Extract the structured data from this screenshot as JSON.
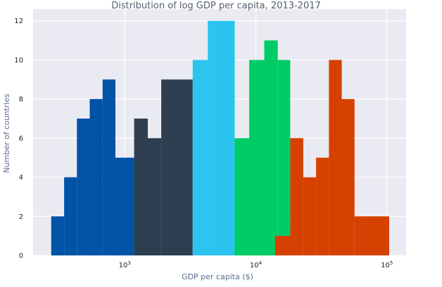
{
  "chart_data": {
    "type": "bar",
    "title": "Distribution of log GDP per capita, 2013-2017",
    "xlabel": "GDP per capita ($)",
    "ylabel": "Number of countries",
    "x_scale": "log",
    "xlim": [
      200,
      140000
    ],
    "ylim": [
      0,
      12.6
    ],
    "x_ticks": [
      {
        "value": 1000,
        "base": "10",
        "exp": "3"
      },
      {
        "value": 10000,
        "base": "10",
        "exp": "4"
      },
      {
        "value": 100000,
        "base": "10",
        "exp": "5"
      }
    ],
    "y_ticks": [
      0,
      2,
      4,
      6,
      8,
      10,
      12
    ],
    "grid": true,
    "background": "#eaeaf2",
    "series": [
      {
        "color": "#0053a6",
        "bins": [
          {
            "x0": 275,
            "x1": 345,
            "count": 2
          },
          {
            "x0": 345,
            "x1": 432,
            "count": 4
          },
          {
            "x0": 432,
            "x1": 541,
            "count": 7
          },
          {
            "x0": 541,
            "x1": 678,
            "count": 8
          },
          {
            "x0": 678,
            "x1": 849,
            "count": 9
          },
          {
            "x0": 849,
            "x1": 1180,
            "count": 5
          }
        ]
      },
      {
        "color": "#2d3e50",
        "bins": [
          {
            "x0": 1180,
            "x1": 1500,
            "count": 7
          },
          {
            "x0": 1500,
            "x1": 1900,
            "count": 6
          },
          {
            "x0": 1900,
            "x1": 3300,
            "count": 9
          }
        ]
      },
      {
        "color": "#2bc4ef",
        "bins": [
          {
            "x0": 3300,
            "x1": 4300,
            "count": 10
          },
          {
            "x0": 4300,
            "x1": 6900,
            "count": 12
          }
        ]
      },
      {
        "color": "#00cc66",
        "bins": [
          {
            "x0": 6900,
            "x1": 8900,
            "count": 6
          },
          {
            "x0": 8900,
            "x1": 11600,
            "count": 10
          },
          {
            "x0": 11600,
            "x1": 14700,
            "count": 11
          },
          {
            "x0": 14700,
            "x1": 18300,
            "count": 10
          }
        ]
      },
      {
        "color": "#d64000",
        "bins": [
          {
            "x0": 14000,
            "x1": 18300,
            "count": 1
          },
          {
            "x0": 18300,
            "x1": 23000,
            "count": 6
          },
          {
            "x0": 23000,
            "x1": 28800,
            "count": 4
          },
          {
            "x0": 28800,
            "x1": 36100,
            "count": 5
          },
          {
            "x0": 36100,
            "x1": 45200,
            "count": 10
          },
          {
            "x0": 45200,
            "x1": 56600,
            "count": 8
          },
          {
            "x0": 56600,
            "x1": 70900,
            "count": 2
          },
          {
            "x0": 70900,
            "x1": 104000,
            "count": 2
          }
        ]
      }
    ]
  }
}
